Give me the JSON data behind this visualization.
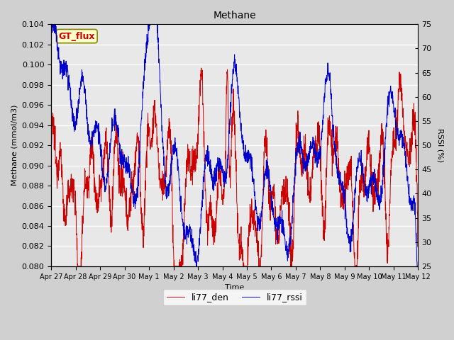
{
  "title": "Methane",
  "xlabel": "Time",
  "ylabel_left": "Methane (mmol/m3)",
  "ylabel_right": "RSSI (%)",
  "annotation_text": "GT_flux",
  "annotation_color": "#cc0000",
  "annotation_bg": "#ffffcc",
  "annotation_border": "#888800",
  "left_ylim": [
    0.08,
    0.104
  ],
  "right_ylim": [
    25,
    75
  ],
  "left_yticks": [
    0.08,
    0.082,
    0.084,
    0.086,
    0.088,
    0.09,
    0.092,
    0.094,
    0.096,
    0.098,
    0.1,
    0.102,
    0.104
  ],
  "right_yticks": [
    25,
    30,
    35,
    40,
    45,
    50,
    55,
    60,
    65,
    70,
    75
  ],
  "line1_color": "#cc0000",
  "line2_color": "#0000cc",
  "line1_label": "li77_den",
  "line2_label": "li77_rssi",
  "plot_bg_color": "#e8e8e8",
  "fig_bg_color": "#d0d0d0",
  "grid_color": "#ffffff",
  "xtick_labels": [
    "Apr 27",
    "Apr 28",
    "Apr 29",
    "Apr 30",
    "May 1",
    "May 2",
    "May 3",
    "May 4",
    "May 5",
    "May 6",
    "May 7",
    "May 8",
    "May 9",
    "May 10",
    "May 11",
    "May 12"
  ]
}
